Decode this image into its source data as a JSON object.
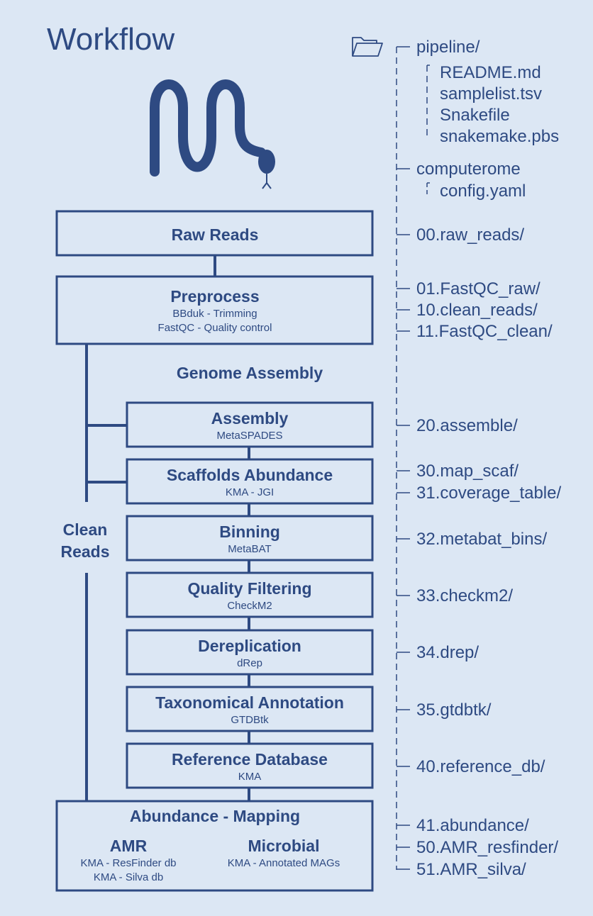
{
  "title": "Workflow",
  "colors": {
    "background": "#dce7f4",
    "ink": "#2e4a82"
  },
  "icons": {
    "logo": "snakemake-logo-icon",
    "folder": "folder-icon"
  },
  "boxes": {
    "raw_reads": {
      "title": "Raw Reads"
    },
    "preprocess": {
      "title": "Preprocess",
      "lines": [
        "BBduk - Trimming",
        "FastQC - Quality control"
      ]
    },
    "assembly": {
      "title": "Assembly",
      "sub": "MetaSPADES"
    },
    "scaffolds": {
      "title": "Scaffolds Abundance",
      "sub": "KMA - JGI"
    },
    "binning": {
      "title": "Binning",
      "sub": "MetaBAT"
    },
    "quality": {
      "title": "Quality Filtering",
      "sub": "CheckM2"
    },
    "derep": {
      "title": "Dereplication",
      "sub": "dRep"
    },
    "taxonomy": {
      "title": "Taxonomical Annotation",
      "sub": "GTDBtk"
    },
    "refdb": {
      "title": "Reference Database",
      "sub": "KMA"
    },
    "abundance": {
      "title": "Abundance - Mapping",
      "amr": {
        "title": "AMR",
        "lines": [
          "KMA - ResFinder db",
          "KMA - Silva db"
        ]
      },
      "microbial": {
        "title": "Microbial",
        "lines": [
          "KMA - Annotated MAGs"
        ]
      }
    }
  },
  "labels": {
    "genome_assembly": "Genome Assembly",
    "clean_reads": [
      "Clean",
      "Reads"
    ]
  },
  "tree": {
    "pipeline": "pipeline/",
    "pipeline_files": [
      "README.md",
      "samplelist.tsv",
      "Snakefile",
      "snakemake.pbs"
    ],
    "computerome": "computerome",
    "computerome_files": [
      "config.yaml"
    ],
    "dirs": {
      "raw": "00.raw_reads/",
      "fastqc_raw": "01.FastQC_raw/",
      "clean": "10.clean_reads/",
      "fastqc_clean": "11.FastQC_clean/",
      "assemble": "20.assemble/",
      "map_scaf": "30.map_scaf/",
      "coverage": "31.coverage_table/",
      "metabat": "32.metabat_bins/",
      "checkm2": "33.checkm2/",
      "drep": "34.drep/",
      "gtdbtk": "35.gtdbtk/",
      "refdb": "40.reference_db/",
      "abundance": "41.abundance/",
      "amr_resfinder": "50.AMR_resfinder/",
      "amr_silva": "51.AMR_silva/"
    }
  }
}
